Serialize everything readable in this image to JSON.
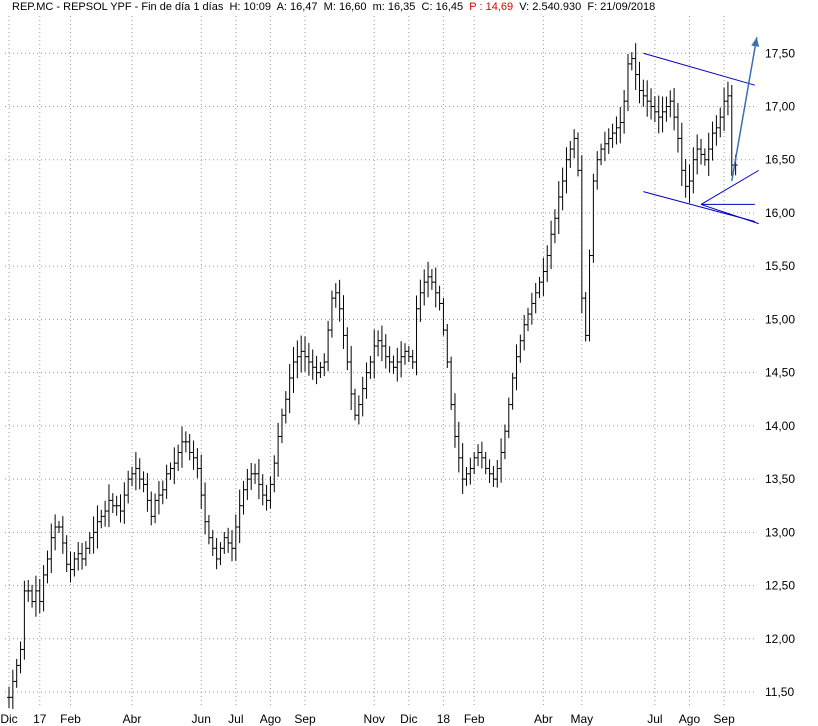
{
  "header": {
    "symbol": "REP.MC - REPSOL YPF - Fin de día 1 días",
    "h": "H: 10:09",
    "a": "A: 16,47",
    "m": "M: 16,60",
    "mn": "m: 16,35",
    "c": "C: 16,45",
    "p": "P : 14,69",
    "v": "V: 2.540.930",
    "f": "F: 21/09/2018",
    "p_color": "#e00000"
  },
  "chart_data": {
    "type": "line",
    "y_ticks": [
      "11,50",
      "12,00",
      "12,50",
      "13,00",
      "13,50",
      "14,00",
      "14,50",
      "15,00",
      "15,50",
      "16,00",
      "16,50",
      "17,00",
      "17,50"
    ],
    "y_tick_values": [
      11.5,
      12.0,
      12.5,
      13.0,
      13.5,
      14.0,
      14.5,
      15.0,
      15.5,
      16.0,
      16.5,
      17.0,
      17.5
    ],
    "ylim": [
      11.35,
      17.85
    ],
    "x_labels": [
      "Dic",
      "17",
      "Feb",
      "Abr",
      "Jun",
      "Jul",
      "Ago",
      "Sep",
      "Nov",
      "Dic",
      "18",
      "Feb",
      "Abr",
      "May",
      "Jul",
      "Ago",
      "Sep"
    ],
    "x_label_index": [
      0,
      8,
      16,
      32,
      50,
      59,
      68,
      77,
      95,
      104,
      113,
      121,
      139,
      149,
      168,
      177,
      186
    ],
    "n_bars": 194,
    "grid": true,
    "series": [
      {
        "closes": [
          11.45,
          11.6,
          11.75,
          11.9,
          12.45,
          12.45,
          12.35,
          12.45,
          12.35,
          12.6,
          12.75,
          12.95,
          13.05,
          13.05,
          12.9,
          12.7,
          12.65,
          12.75,
          12.8,
          12.75,
          12.85,
          12.95,
          13.0,
          13.1,
          13.15,
          13.2,
          13.3,
          13.25,
          13.25,
          13.2,
          13.35,
          13.5,
          13.55,
          13.6,
          13.5,
          13.45,
          13.3,
          13.15,
          13.3,
          13.35,
          13.4,
          13.55,
          13.6,
          13.65,
          13.75,
          13.85,
          13.85,
          13.75,
          13.7,
          13.6,
          13.35,
          13.1,
          12.95,
          12.85,
          12.75,
          12.85,
          12.95,
          12.9,
          12.85,
          13.05,
          13.25,
          13.4,
          13.5,
          13.55,
          13.55,
          13.45,
          13.35,
          13.3,
          13.45,
          13.65,
          13.9,
          14.1,
          14.25,
          14.45,
          14.6,
          14.65,
          14.7,
          14.65,
          14.6,
          14.55,
          14.5,
          14.55,
          14.6,
          14.9,
          15.2,
          15.25,
          15.1,
          14.85,
          14.6,
          14.3,
          14.1,
          14.2,
          14.35,
          14.5,
          14.6,
          14.75,
          14.8,
          14.75,
          14.65,
          14.6,
          14.55,
          14.6,
          14.65,
          14.7,
          14.65,
          14.6,
          15.1,
          15.25,
          15.35,
          15.4,
          15.35,
          15.25,
          15.15,
          14.9,
          14.6,
          14.2,
          13.9,
          13.7,
          13.5,
          13.55,
          13.6,
          13.7,
          13.75,
          13.7,
          13.6,
          13.55,
          13.5,
          13.6,
          13.75,
          13.95,
          14.2,
          14.45,
          14.65,
          14.8,
          14.95,
          15.05,
          15.15,
          15.25,
          15.35,
          15.45,
          15.6,
          15.8,
          15.95,
          16.15,
          16.3,
          16.5,
          16.6,
          16.7,
          16.4,
          15.2,
          14.85,
          15.6,
          16.3,
          16.5,
          16.6,
          16.65,
          16.7,
          16.75,
          16.8,
          16.85,
          17.05,
          17.4,
          17.45,
          17.3,
          17.15,
          17.1,
          17.05,
          17.0,
          16.95,
          16.9,
          16.95,
          17.0,
          17.05,
          16.9,
          16.7,
          16.4,
          16.25,
          16.3,
          16.5,
          16.6,
          16.55,
          16.5,
          16.6,
          16.75,
          16.8,
          16.9,
          17.05,
          17.1,
          16.45,
          16.45
        ]
      }
    ],
    "trendlines": [
      {
        "from": [
          165,
          17.5
        ],
        "to": [
          194,
          17.2
        ],
        "color": "#0000c0"
      },
      {
        "from": [
          165,
          16.2
        ],
        "to": [
          194,
          15.92
        ],
        "color": "#0000c0"
      },
      {
        "from": [
          180,
          16.08
        ],
        "to": [
          194,
          16.08
        ],
        "color": "#0000c0"
      },
      {
        "from": [
          180,
          16.08
        ],
        "to": [
          195,
          16.4
        ],
        "color": "#0000c0"
      },
      {
        "from": [
          180,
          16.08
        ],
        "to": [
          195,
          15.9
        ],
        "color": "#0000c0"
      }
    ],
    "arrow": {
      "from": [
        188,
        16.3
      ],
      "to": [
        194.5,
        17.65
      ],
      "color": "#3a6fb0"
    }
  }
}
